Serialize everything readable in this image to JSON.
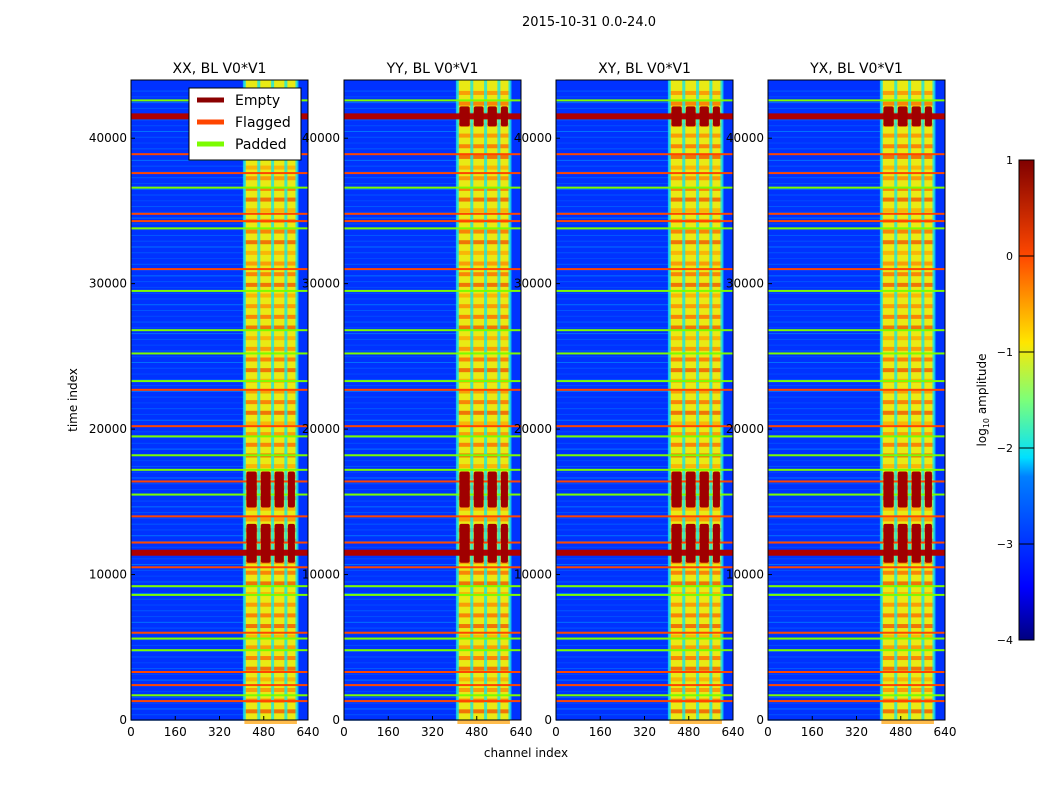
{
  "chart_data": {
    "type": "heatmap",
    "suptitle": "2015-10-31 0.0-24.0",
    "xlabel": "channel index",
    "ylabel": "time index",
    "xlim": [
      0,
      640
    ],
    "ylim": [
      0,
      44000
    ],
    "xticks": [
      "0",
      "160",
      "320",
      "480",
      "640"
    ],
    "xtick_values": [
      0,
      160,
      320,
      480,
      640
    ],
    "yticks": [
      "0",
      "10000",
      "20000",
      "30000",
      "40000"
    ],
    "ytick_values": [
      0,
      10000,
      20000,
      30000,
      40000
    ],
    "panels": [
      {
        "title": "XX, BL V0*V1"
      },
      {
        "title": "YY, BL V0*V1"
      },
      {
        "title": "XY, BL V0*V1"
      },
      {
        "title": "YX, BL V0*V1"
      }
    ],
    "background_log_amplitude": -3,
    "active_channel_band": [
      410,
      600
    ],
    "active_band_log_amplitude": -1,
    "channel_gaps": [
      410,
      462,
      512,
      560,
      600
    ],
    "rows": [
      {
        "t": 1300,
        "kind": "flagged"
      },
      {
        "t": 1700,
        "kind": "padded"
      },
      {
        "t": 2400,
        "kind": "flagged"
      },
      {
        "t": 3300,
        "kind": "flagged"
      },
      {
        "t": 4800,
        "kind": "padded"
      },
      {
        "t": 5600,
        "kind": "padded"
      },
      {
        "t": 6000,
        "kind": "flagged"
      },
      {
        "t": 8600,
        "kind": "padded"
      },
      {
        "t": 9200,
        "kind": "padded"
      },
      {
        "t": 10500,
        "kind": "flagged"
      },
      {
        "t": 11500,
        "kind": "empty"
      },
      {
        "t": 12200,
        "kind": "flagged"
      },
      {
        "t": 14000,
        "kind": "flagged"
      },
      {
        "t": 15500,
        "kind": "padded"
      },
      {
        "t": 16400,
        "kind": "flagged"
      },
      {
        "t": 17200,
        "kind": "padded"
      },
      {
        "t": 18200,
        "kind": "padded"
      },
      {
        "t": 19500,
        "kind": "padded"
      },
      {
        "t": 20200,
        "kind": "flagged"
      },
      {
        "t": 22700,
        "kind": "flagged"
      },
      {
        "t": 23300,
        "kind": "padded"
      },
      {
        "t": 25200,
        "kind": "padded"
      },
      {
        "t": 26800,
        "kind": "padded"
      },
      {
        "t": 29500,
        "kind": "padded"
      },
      {
        "t": 31000,
        "kind": "flagged"
      },
      {
        "t": 33800,
        "kind": "padded"
      },
      {
        "t": 34300,
        "kind": "flagged"
      },
      {
        "t": 34800,
        "kind": "flagged"
      },
      {
        "t": 36600,
        "kind": "padded"
      },
      {
        "t": 37600,
        "kind": "flagged"
      },
      {
        "t": 38900,
        "kind": "flagged"
      },
      {
        "t": 41500,
        "kind": "empty"
      },
      {
        "t": 42600,
        "kind": "padded"
      }
    ],
    "hot_spots_t": [
      11500,
      12800,
      15300,
      16400,
      41500
    ],
    "legend": {
      "placement": "top-right of first panel",
      "entries": [
        {
          "label": "Empty",
          "color": "#8b0000"
        },
        {
          "label": "Flagged",
          "color": "#ff4500"
        },
        {
          "label": "Padded",
          "color": "#7cfc00"
        }
      ]
    },
    "colorbar": {
      "label": "log10 amplitude",
      "label_main": "log",
      "label_sub": "10",
      "label_rest": " amplitude",
      "range": [
        -4,
        1
      ],
      "ticks": [
        "−4",
        "−3",
        "−2",
        "−1",
        "0",
        "1"
      ],
      "tick_values": [
        -4,
        -3,
        -2,
        -1,
        0,
        1
      ]
    }
  }
}
